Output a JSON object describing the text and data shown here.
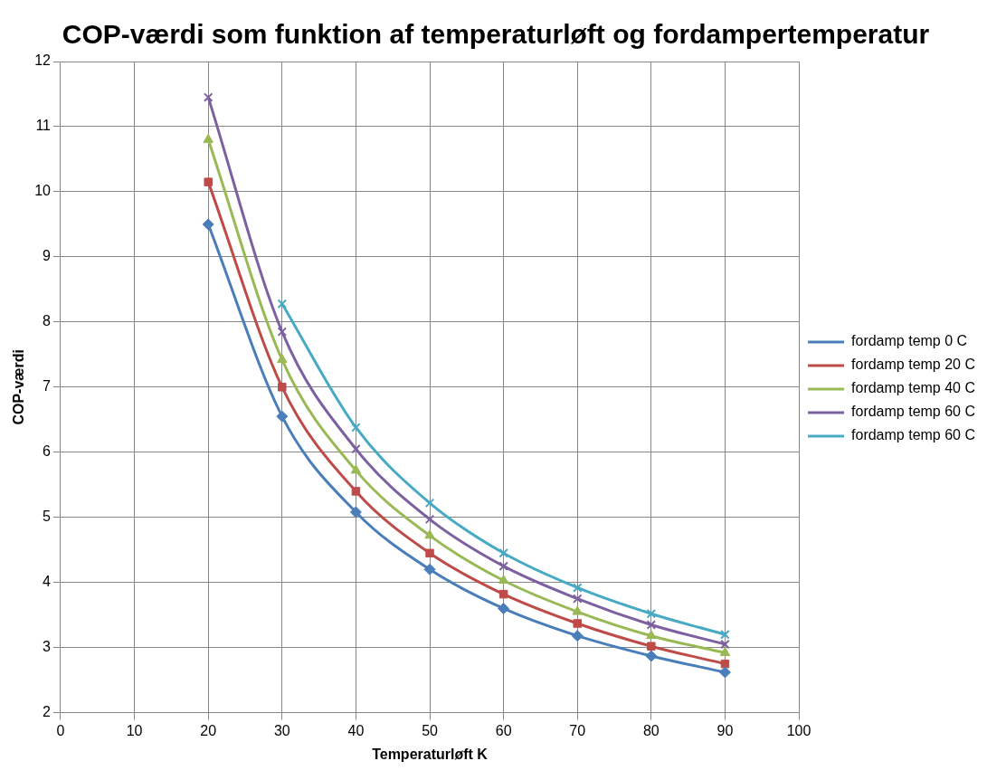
{
  "chart_data": {
    "type": "line",
    "title": "COP-værdi som funktion af temperaturløft og fordampertemperatur",
    "xlabel": "Temperaturløft K",
    "ylabel": "COP-værdi",
    "x": [
      20,
      30,
      40,
      50,
      60,
      70,
      80,
      90
    ],
    "series": [
      {
        "name": "fordamp temp 0 C",
        "color": "#4a7ebb",
        "marker": "diamond",
        "values": [
          9.5,
          6.55,
          5.08,
          4.2,
          3.6,
          3.18,
          2.87,
          2.62
        ]
      },
      {
        "name": "fordamp temp 20 C",
        "color": "#be4b48",
        "marker": "square",
        "values": [
          10.15,
          7.0,
          5.4,
          4.45,
          3.82,
          3.37,
          3.02,
          2.75
        ]
      },
      {
        "name": "fordamp temp 40 C",
        "color": "#98b954",
        "marker": "triangle",
        "values": [
          10.8,
          7.42,
          5.72,
          4.72,
          4.03,
          3.55,
          3.18,
          2.92
        ]
      },
      {
        "name": "fordamp temp 60 C",
        "color": "#7d60a0",
        "marker": "cross",
        "values": [
          11.45,
          7.85,
          6.05,
          4.97,
          4.25,
          3.75,
          3.35,
          3.05
        ]
      },
      {
        "name": "fordamp temp 60 C",
        "color": "#46aac5",
        "marker": "cross",
        "values": [
          null,
          8.28,
          6.38,
          5.22,
          4.45,
          3.92,
          3.52,
          3.2
        ]
      }
    ],
    "xlim": [
      0,
      100
    ],
    "xticks": [
      0,
      10,
      20,
      30,
      40,
      50,
      60,
      70,
      80,
      90,
      100
    ],
    "ylim": [
      2,
      12
    ],
    "yticks": [
      2,
      3,
      4,
      5,
      6,
      7,
      8,
      9,
      10,
      11,
      12
    ],
    "grid": true,
    "legend": "right"
  }
}
